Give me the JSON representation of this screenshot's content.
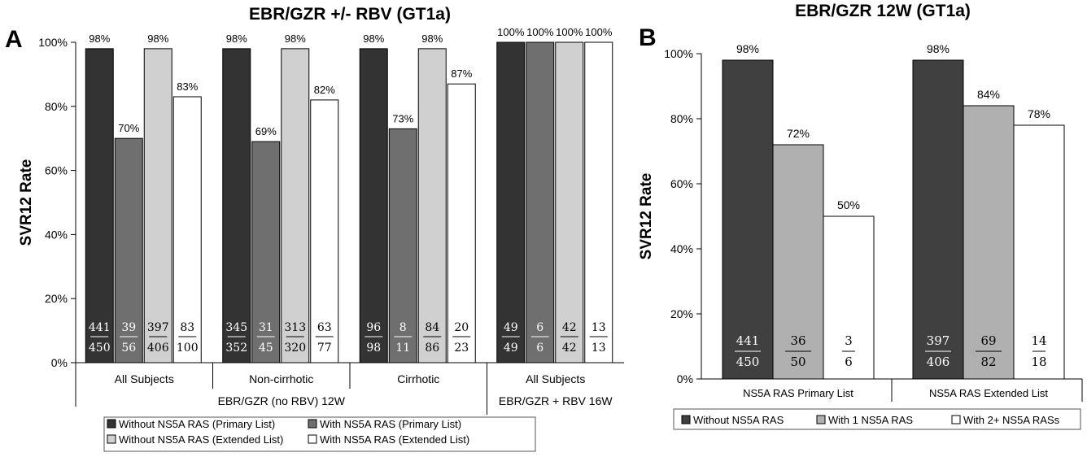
{
  "chart_data": [
    {
      "panel_label": "A",
      "type": "bar",
      "title": "EBR/GZR +/- RBV (GT1a)",
      "ylabel": "SVR12 Rate",
      "ylim": [
        0,
        100
      ],
      "yticks": [
        "0%",
        "20%",
        "40%",
        "60%",
        "80%",
        "100%"
      ],
      "grid": false,
      "groups": [
        {
          "label": "All Subjects",
          "values": [
            98,
            70,
            98,
            83
          ],
          "value_labels": [
            "98%",
            "70%",
            "98%",
            "83%"
          ],
          "numerators": [
            "441",
            "39",
            "397",
            "83"
          ],
          "denominators": [
            "450",
            "56",
            "406",
            "100"
          ]
        },
        {
          "label": "Non-cirrhotic",
          "values": [
            98,
            69,
            98,
            82
          ],
          "value_labels": [
            "98%",
            "69%",
            "98%",
            "82%"
          ],
          "numerators": [
            "345",
            "31",
            "313",
            "63"
          ],
          "denominators": [
            "352",
            "45",
            "320",
            "77"
          ]
        },
        {
          "label": "Cirrhotic",
          "values": [
            98,
            73,
            98,
            87
          ],
          "value_labels": [
            "98%",
            "73%",
            "98%",
            "87%"
          ],
          "numerators": [
            "96",
            "8",
            "84",
            "20"
          ],
          "denominators": [
            "98",
            "11",
            "86",
            "23"
          ]
        },
        {
          "label": "All Subjects",
          "values": [
            100,
            100,
            100,
            100
          ],
          "value_labels": [
            "100%",
            "100%",
            "100%",
            "100%"
          ],
          "numerators": [
            "49",
            "6",
            "42",
            "13"
          ],
          "denominators": [
            "49",
            "6",
            "42",
            "13"
          ]
        }
      ],
      "supergroups": [
        {
          "label": "EBR/GZR (no RBV) 12W",
          "span": [
            0,
            2
          ]
        },
        {
          "label": "EBR/GZR + RBV 16W",
          "span": [
            3,
            3
          ]
        }
      ],
      "series": [
        {
          "name": "Without NS5A RAS (Primary List)",
          "color": "#333333"
        },
        {
          "name": "With NS5A RAS (Primary List)",
          "color": "#6f6f6f"
        },
        {
          "name": "Without NS5A RAS (Extended List)",
          "color": "#d0d0d0"
        },
        {
          "name": "With NS5A RAS (Extended List)",
          "color": "#ffffff"
        }
      ],
      "legend_placement": "bottom"
    },
    {
      "panel_label": "B",
      "type": "bar",
      "title": "EBR/GZR 12W (GT1a)",
      "ylabel": "SVR12 Rate",
      "ylim": [
        0,
        100
      ],
      "yticks": [
        "0%",
        "20%",
        "40%",
        "60%",
        "80%",
        "100%"
      ],
      "grid": false,
      "groups": [
        {
          "label": "NS5A RAS Primary List",
          "values": [
            98,
            72,
            50
          ],
          "value_labels": [
            "98%",
            "72%",
            "50%"
          ],
          "numerators": [
            "441",
            "36",
            "3"
          ],
          "denominators": [
            "450",
            "50",
            "6"
          ]
        },
        {
          "label": "NS5A RAS Extended List",
          "values": [
            98,
            84,
            78
          ],
          "value_labels": [
            "98%",
            "84%",
            "78%"
          ],
          "numerators": [
            "397",
            "69",
            "14"
          ],
          "denominators": [
            "406",
            "82",
            "18"
          ]
        }
      ],
      "series": [
        {
          "name": "Without NS5A RAS",
          "color": "#404040"
        },
        {
          "name": "With 1 NS5A RAS",
          "color": "#b0b0b0"
        },
        {
          "name": "With 2+ NS5A RASs",
          "color": "#ffffff"
        }
      ],
      "legend_placement": "bottom"
    }
  ]
}
